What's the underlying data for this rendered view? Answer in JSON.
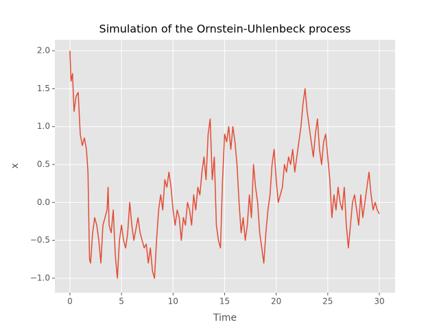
{
  "chart_data": {
    "type": "line",
    "title": "Simulation of the Ornstein-Uhlenbeck process",
    "x_label": "Time",
    "y_label": "x",
    "x": [
      0,
      0.1,
      0.25,
      0.4,
      0.6,
      0.8,
      1.0,
      1.2,
      1.4,
      1.6,
      1.75,
      1.9,
      2.0,
      2.2,
      2.4,
      2.6,
      2.8,
      3.0,
      3.2,
      3.4,
      3.6,
      3.7,
      3.8,
      4.0,
      4.2,
      4.4,
      4.6,
      4.8,
      5.0,
      5.2,
      5.4,
      5.6,
      5.8,
      6.0,
      6.2,
      6.4,
      6.6,
      6.8,
      7.0,
      7.2,
      7.4,
      7.6,
      7.8,
      8.0,
      8.2,
      8.4,
      8.6,
      8.8,
      9.0,
      9.2,
      9.4,
      9.6,
      9.8,
      10.0,
      10.2,
      10.4,
      10.6,
      10.8,
      11.0,
      11.2,
      11.4,
      11.6,
      11.8,
      12.0,
      12.2,
      12.4,
      12.6,
      12.8,
      13.0,
      13.2,
      13.4,
      13.6,
      13.8,
      14.0,
      14.2,
      14.4,
      14.6,
      14.8,
      15.0,
      15.2,
      15.4,
      15.6,
      15.8,
      16.0,
      16.2,
      16.4,
      16.6,
      16.8,
      17.0,
      17.2,
      17.4,
      17.6,
      17.8,
      18.0,
      18.2,
      18.4,
      18.6,
      18.8,
      19.0,
      19.2,
      19.4,
      19.6,
      19.8,
      20.0,
      20.2,
      20.4,
      20.6,
      20.8,
      21.0,
      21.2,
      21.4,
      21.6,
      21.8,
      22.0,
      22.2,
      22.4,
      22.6,
      22.8,
      23.0,
      23.2,
      23.4,
      23.6,
      23.8,
      24.0,
      24.2,
      24.4,
      24.6,
      24.8,
      25.0,
      25.2,
      25.4,
      25.6,
      25.8,
      26.0,
      26.2,
      26.4,
      26.6,
      26.8,
      27.0,
      27.2,
      27.4,
      27.6,
      27.8,
      28.0,
      28.2,
      28.4,
      28.6,
      28.8,
      29.0,
      29.2,
      29.4,
      29.6,
      29.8,
      30.0
    ],
    "series": [
      {
        "name": "x",
        "color": "#E24A33",
        "values": [
          2.0,
          1.6,
          1.7,
          1.2,
          1.4,
          1.45,
          0.9,
          0.75,
          0.85,
          0.7,
          0.4,
          -0.75,
          -0.8,
          -0.4,
          -0.2,
          -0.3,
          -0.5,
          -0.8,
          -0.3,
          -0.2,
          -0.1,
          0.2,
          -0.3,
          -0.4,
          -0.1,
          -0.7,
          -1.0,
          -0.5,
          -0.3,
          -0.5,
          -0.6,
          -0.4,
          0.0,
          -0.3,
          -0.5,
          -0.35,
          -0.2,
          -0.4,
          -0.5,
          -0.6,
          -0.55,
          -0.8,
          -0.6,
          -0.9,
          -1.0,
          -0.5,
          -0.1,
          0.1,
          -0.1,
          0.3,
          0.2,
          0.4,
          0.2,
          -0.1,
          -0.3,
          -0.1,
          -0.2,
          -0.5,
          -0.2,
          -0.3,
          0.0,
          -0.1,
          -0.3,
          0.1,
          -0.1,
          0.2,
          0.1,
          0.4,
          0.6,
          0.3,
          0.9,
          1.1,
          0.3,
          0.6,
          -0.3,
          -0.5,
          -0.6,
          0.3,
          0.9,
          0.8,
          1.0,
          0.7,
          1.0,
          0.8,
          0.5,
          0.0,
          -0.4,
          -0.2,
          -0.5,
          -0.3,
          0.1,
          -0.2,
          0.5,
          0.2,
          0.0,
          -0.4,
          -0.6,
          -0.8,
          -0.4,
          -0.1,
          0.1,
          0.5,
          0.7,
          0.3,
          0.0,
          0.1,
          0.2,
          0.5,
          0.4,
          0.6,
          0.5,
          0.7,
          0.4,
          0.6,
          0.8,
          1.0,
          1.3,
          1.5,
          1.2,
          1.0,
          0.8,
          0.6,
          0.9,
          1.1,
          0.7,
          0.5,
          0.8,
          0.9,
          0.6,
          0.3,
          -0.2,
          0.1,
          -0.1,
          0.2,
          0.0,
          -0.1,
          0.2,
          -0.3,
          -0.6,
          -0.3,
          0.0,
          0.1,
          -0.1,
          -0.3,
          0.1,
          -0.2,
          0.0,
          0.2,
          0.4,
          0.1,
          -0.1,
          0.0,
          -0.1,
          -0.15
        ]
      }
    ],
    "xlim": [
      -1.46,
      31.53
    ],
    "xticks": [
      0,
      5,
      10,
      15,
      20,
      25,
      30
    ],
    "ylim": [
      -1.19,
      2.145
    ],
    "yticks": [
      {
        "value": -1.0,
        "label": "−1.0"
      },
      {
        "value": -0.5,
        "label": "−0.5"
      },
      {
        "value": 0.0,
        "label": "0.0"
      },
      0.5,
      {
        "value": 1.0,
        "label": "1.0"
      },
      1.5,
      {
        "value": 2.0,
        "label": "2.0"
      }
    ],
    "grid": true
  }
}
